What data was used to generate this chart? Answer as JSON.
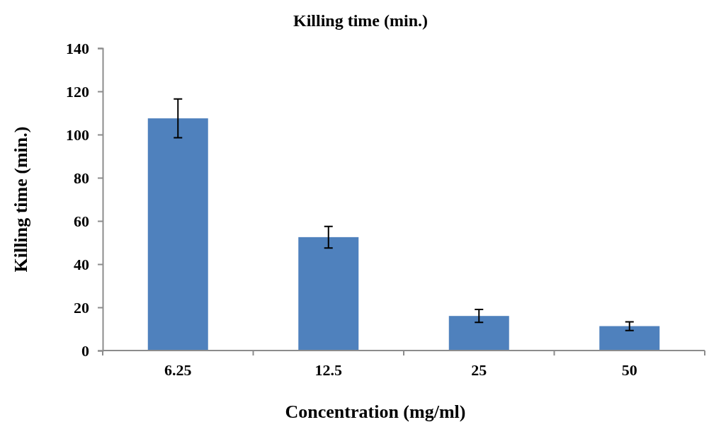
{
  "chart_data": {
    "type": "bar",
    "title": "Killing time (min.)",
    "xlabel": "Concentration (mg/ml)",
    "ylabel": "Killing time (min.)",
    "categories": [
      "6.25",
      "12.5",
      "25",
      "50"
    ],
    "values": [
      107.5,
      52.5,
      16,
      11.3
    ],
    "errors": [
      9,
      5,
      3,
      2
    ],
    "color": "#4f81bd",
    "ylim": [
      0,
      140
    ],
    "yticks": [
      0,
      20,
      40,
      60,
      80,
      100,
      120,
      140
    ],
    "grid": false
  }
}
